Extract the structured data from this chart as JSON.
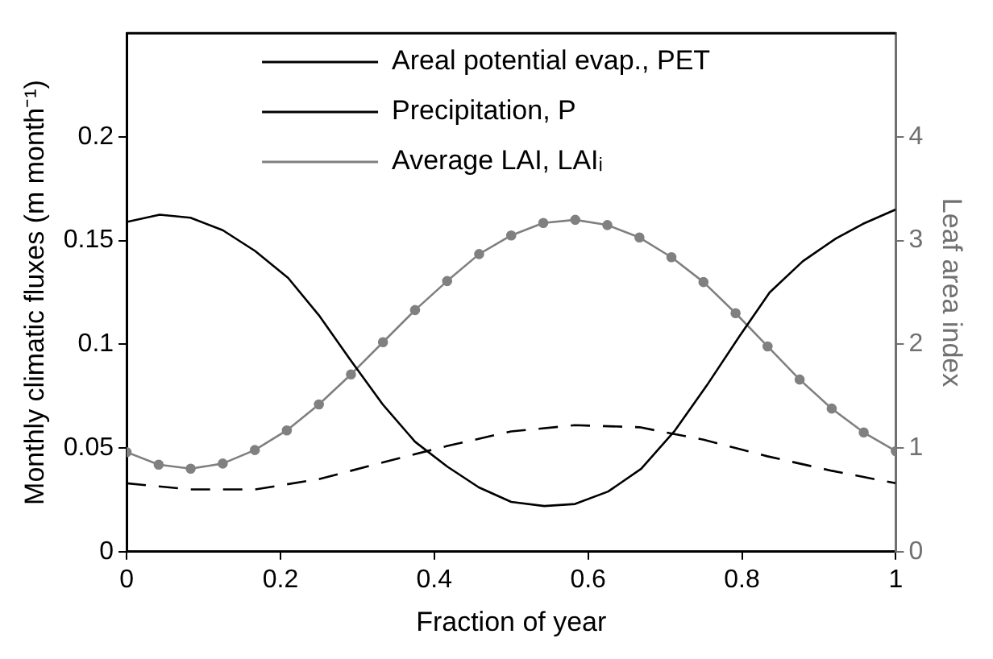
{
  "chart_data": {
    "type": "line",
    "xlabel": "Fraction of year",
    "ylabel": "Monthly climatic fluxes (m month⁻¹)",
    "y2label": "Leaf area index",
    "xlim": [
      0,
      1
    ],
    "xticks": [
      0,
      0.2,
      0.4,
      0.6,
      0.8,
      1
    ],
    "ylim": [
      0,
      0.25
    ],
    "yticks": [
      0,
      0.05,
      0.1,
      0.15,
      0.2
    ],
    "y2lim": [
      0,
      5
    ],
    "y2ticks": [
      0,
      1,
      2,
      3,
      4
    ],
    "grid": false,
    "legend": "top",
    "series": [
      {
        "name": "Areal potential evap., PET",
        "color": "#000000",
        "marker": "none",
        "line_style": "solid",
        "x": [
          0,
          0.043,
          0.083,
          0.125,
          0.167,
          0.21,
          0.25,
          0.29,
          0.333,
          0.375,
          0.417,
          0.458,
          0.5,
          0.543,
          0.583,
          0.626,
          0.669,
          0.712,
          0.754,
          0.797,
          0.836,
          0.879,
          0.922,
          0.957,
          1
        ],
        "values": [
          0.159,
          0.1625,
          0.161,
          0.155,
          0.145,
          0.132,
          0.114,
          0.093,
          0.071,
          0.053,
          0.041,
          0.031,
          0.024,
          0.022,
          0.023,
          0.029,
          0.04,
          0.058,
          0.08,
          0.104,
          0.125,
          0.14,
          0.151,
          0.158,
          0.165
        ]
      },
      {
        "name": "Precipitation, P",
        "color": "#000000",
        "marker": "none",
        "line_style": "dashed",
        "x": [
          0,
          0.083,
          0.167,
          0.25,
          0.333,
          0.417,
          0.5,
          0.583,
          0.667,
          0.75,
          0.833,
          0.917,
          1
        ],
        "values": [
          0.033,
          0.03,
          0.03,
          0.035,
          0.043,
          0.051,
          0.058,
          0.061,
          0.06,
          0.054,
          0.046,
          0.039,
          0.033
        ]
      },
      {
        "name": "Average LAI, LAIᵢ",
        "color": "#808080",
        "marker": "circle",
        "line_style": "solid",
        "axis": "y2",
        "x": [
          0,
          0.0417,
          0.0833,
          0.125,
          0.1667,
          0.2083,
          0.25,
          0.2917,
          0.3333,
          0.375,
          0.4167,
          0.4583,
          0.5,
          0.5417,
          0.5833,
          0.625,
          0.6667,
          0.7083,
          0.75,
          0.7917,
          0.8333,
          0.875,
          0.9167,
          0.9583,
          1
        ],
        "values": [
          0.96,
          0.84,
          0.8,
          0.85,
          0.98,
          1.17,
          1.42,
          1.71,
          2.02,
          2.33,
          2.61,
          2.87,
          3.05,
          3.17,
          3.2,
          3.15,
          3.03,
          2.84,
          2.6,
          2.3,
          1.98,
          1.66,
          1.38,
          1.15,
          0.97
        ]
      }
    ]
  }
}
